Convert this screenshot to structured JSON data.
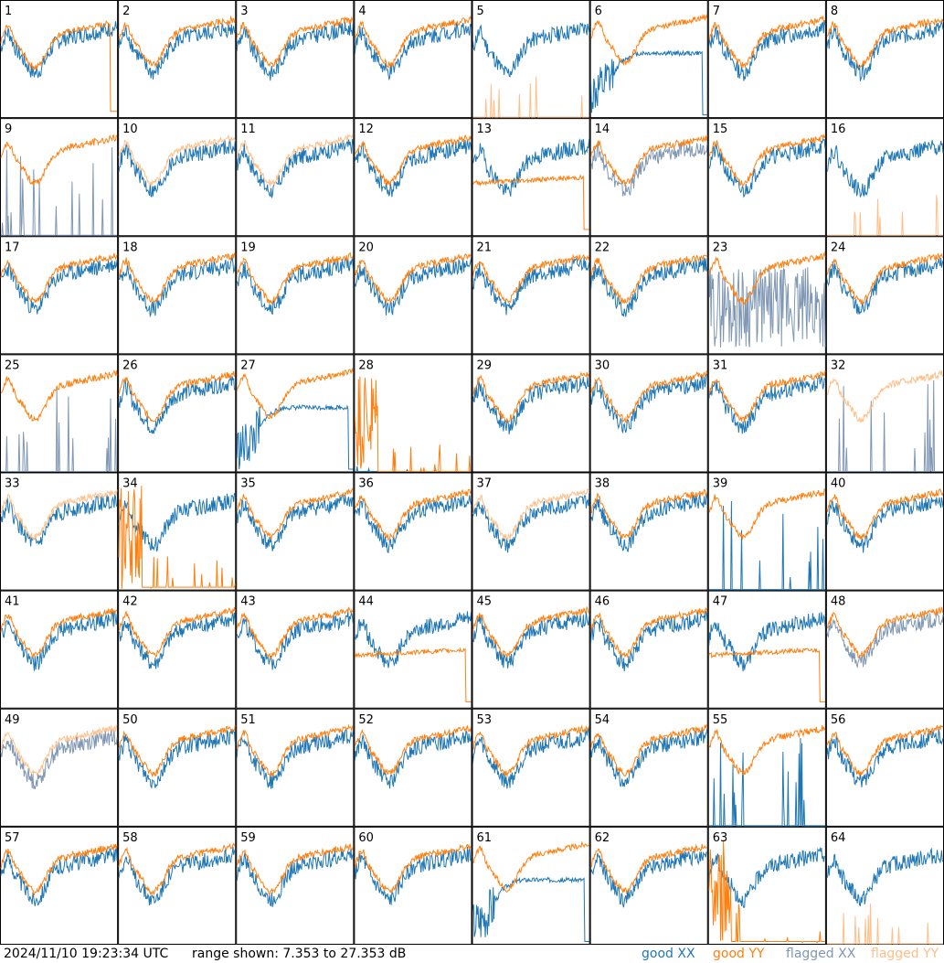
{
  "chart_data": {
    "type": "line",
    "layout": "8x8 small-multiples grid",
    "y_range_db": [
      7.353,
      27.353
    ],
    "x_axis": "frequency (unlabeled)",
    "axis_labels": false,
    "footer": {
      "timestamp": "2024/11/10 19:23:34 UTC",
      "range_text": "range shown: 7.353 to 27.353 dB"
    },
    "legend": [
      {
        "key": "good_xx",
        "label": "good XX",
        "color": "#1f77b4"
      },
      {
        "key": "good_yy",
        "label": "good YY",
        "color": "#ff7f0e"
      },
      {
        "key": "flagged_xx",
        "label": "flagged XX",
        "color": "#7f97b3"
      },
      {
        "key": "flagged_yy",
        "label": "flagged YY",
        "color": "#ffbf88"
      }
    ],
    "panels": [
      {
        "id": "1",
        "xx": "good",
        "yy": "good",
        "profile": "dropoff"
      },
      {
        "id": "2",
        "xx": "good",
        "yy": "good",
        "profile": "normal"
      },
      {
        "id": "3",
        "xx": "good",
        "yy": "good",
        "profile": "normal"
      },
      {
        "id": "4",
        "xx": "good",
        "yy": "good",
        "profile": "normal"
      },
      {
        "id": "5",
        "xx": "good",
        "yy": "flagged",
        "profile": "yy_spikes"
      },
      {
        "id": "6",
        "xx": "good",
        "yy": "good",
        "profile": "xx_dip"
      },
      {
        "id": "7",
        "xx": "good",
        "yy": "good",
        "profile": "normal"
      },
      {
        "id": "8",
        "xx": "good",
        "yy": "good",
        "profile": "normal"
      },
      {
        "id": "9",
        "xx": "flagged",
        "yy": "good",
        "profile": "xx_spikes"
      },
      {
        "id": "10",
        "xx": "good",
        "yy": "flagged",
        "profile": "normal"
      },
      {
        "id": "11",
        "xx": "good",
        "yy": "flagged",
        "profile": "normal"
      },
      {
        "id": "12",
        "xx": "good",
        "yy": "good",
        "profile": "normal"
      },
      {
        "id": "13",
        "xx": "good",
        "yy": "good",
        "profile": "yy_dropoff"
      },
      {
        "id": "14",
        "xx": "flagged",
        "yy": "good",
        "profile": "normal"
      },
      {
        "id": "15",
        "xx": "good",
        "yy": "good",
        "profile": "normal"
      },
      {
        "id": "16",
        "xx": "good",
        "yy": "flagged",
        "profile": "yy_spikes"
      },
      {
        "id": "17",
        "xx": "good",
        "yy": "good",
        "profile": "normal"
      },
      {
        "id": "18",
        "xx": "good",
        "yy": "good",
        "profile": "normal"
      },
      {
        "id": "19",
        "xx": "good",
        "yy": "good",
        "profile": "normal"
      },
      {
        "id": "20",
        "xx": "good",
        "yy": "good",
        "profile": "normal"
      },
      {
        "id": "21",
        "xx": "good",
        "yy": "good",
        "profile": "normal"
      },
      {
        "id": "22",
        "xx": "good",
        "yy": "good",
        "profile": "normal"
      },
      {
        "id": "23",
        "xx": "flagged",
        "yy": "good",
        "profile": "xx_noisy"
      },
      {
        "id": "24",
        "xx": "good",
        "yy": "good",
        "profile": "normal"
      },
      {
        "id": "25",
        "xx": "flagged",
        "yy": "good",
        "profile": "xx_spikes"
      },
      {
        "id": "26",
        "xx": "good",
        "yy": "good",
        "profile": "normal"
      },
      {
        "id": "27",
        "xx": "good",
        "yy": "good",
        "profile": "xx_dip"
      },
      {
        "id": "28",
        "xx": "good",
        "yy": "good",
        "profile": "spikes_only"
      },
      {
        "id": "29",
        "xx": "good",
        "yy": "good",
        "profile": "normal"
      },
      {
        "id": "30",
        "xx": "good",
        "yy": "good",
        "profile": "normal"
      },
      {
        "id": "31",
        "xx": "good",
        "yy": "good",
        "profile": "normal"
      },
      {
        "id": "32",
        "xx": "flagged",
        "yy": "flagged",
        "profile": "xx_spikes"
      },
      {
        "id": "33",
        "xx": "good",
        "yy": "flagged",
        "profile": "normal"
      },
      {
        "id": "34",
        "xx": "good",
        "yy": "good",
        "profile": "yy_spikes_bottom"
      },
      {
        "id": "35",
        "xx": "good",
        "yy": "good",
        "profile": "normal"
      },
      {
        "id": "36",
        "xx": "good",
        "yy": "good",
        "profile": "normal"
      },
      {
        "id": "37",
        "xx": "good",
        "yy": "flagged",
        "profile": "normal"
      },
      {
        "id": "38",
        "xx": "good",
        "yy": "good",
        "profile": "normal"
      },
      {
        "id": "39",
        "xx": "good",
        "yy": "good",
        "profile": "xx_spikes"
      },
      {
        "id": "40",
        "xx": "good",
        "yy": "good",
        "profile": "normal"
      },
      {
        "id": "41",
        "xx": "good",
        "yy": "good",
        "profile": "normal"
      },
      {
        "id": "42",
        "xx": "good",
        "yy": "good",
        "profile": "normal"
      },
      {
        "id": "43",
        "xx": "good",
        "yy": "good",
        "profile": "normal"
      },
      {
        "id": "44",
        "xx": "good",
        "yy": "good",
        "profile": "yy_dropoff"
      },
      {
        "id": "45",
        "xx": "good",
        "yy": "good",
        "profile": "normal"
      },
      {
        "id": "46",
        "xx": "good",
        "yy": "good",
        "profile": "normal"
      },
      {
        "id": "47",
        "xx": "good",
        "yy": "good",
        "profile": "yy_dropoff"
      },
      {
        "id": "48",
        "xx": "flagged",
        "yy": "good",
        "profile": "normal"
      },
      {
        "id": "49",
        "xx": "flagged",
        "yy": "flagged",
        "profile": "normal"
      },
      {
        "id": "50",
        "xx": "good",
        "yy": "good",
        "profile": "normal"
      },
      {
        "id": "51",
        "xx": "good",
        "yy": "good",
        "profile": "normal"
      },
      {
        "id": "52",
        "xx": "good",
        "yy": "good",
        "profile": "normal"
      },
      {
        "id": "53",
        "xx": "good",
        "yy": "good",
        "profile": "normal"
      },
      {
        "id": "54",
        "xx": "good",
        "yy": "good",
        "profile": "normal"
      },
      {
        "id": "55",
        "xx": "good",
        "yy": "good",
        "profile": "xx_spikes"
      },
      {
        "id": "56",
        "xx": "good",
        "yy": "good",
        "profile": "normal"
      },
      {
        "id": "57",
        "xx": "good",
        "yy": "good",
        "profile": "normal"
      },
      {
        "id": "58",
        "xx": "good",
        "yy": "good",
        "profile": "normal"
      },
      {
        "id": "59",
        "xx": "good",
        "yy": "good",
        "profile": "normal"
      },
      {
        "id": "60",
        "xx": "good",
        "yy": "good",
        "profile": "normal"
      },
      {
        "id": "61",
        "xx": "good",
        "yy": "good",
        "profile": "xx_dip"
      },
      {
        "id": "62",
        "xx": "good",
        "yy": "good",
        "profile": "normal"
      },
      {
        "id": "63",
        "xx": "good",
        "yy": "good",
        "profile": "yy_spikes_bottom"
      },
      {
        "id": "64",
        "xx": "good",
        "yy": "flagged",
        "profile": "yy_spikes"
      }
    ]
  }
}
